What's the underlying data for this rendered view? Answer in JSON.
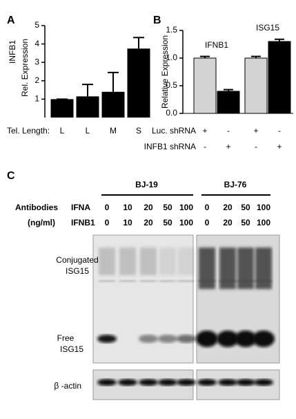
{
  "chart_data": [
    {
      "type": "bar",
      "panel_label": "A",
      "ylabel": [
        "INFB1",
        "Rel. Expression"
      ],
      "row_label": "Tel. Length:",
      "categories": [
        "L",
        "L",
        "M",
        "S"
      ],
      "values": [
        1,
        1.15,
        1.4,
        3.75
      ],
      "errors": [
        0,
        0.65,
        1.05,
        0.6
      ],
      "color": "#000000",
      "ylim": [
        0,
        5
      ],
      "yticks": [
        1,
        2,
        3,
        4,
        5
      ]
    },
    {
      "type": "grouped_bar",
      "panel_label": "B",
      "ylabel": "Relative Expression",
      "categories": [
        "IFNB1",
        "ISG15"
      ],
      "series": [
        {
          "color": "#d3d3d3",
          "values": [
            1.0,
            1.0
          ],
          "errors": [
            0.03,
            0.03
          ]
        },
        {
          "color": "#000000",
          "values": [
            0.4,
            1.3
          ],
          "errors": [
            0.03,
            0.04
          ]
        }
      ],
      "ylim": [
        0,
        1.5
      ],
      "yticks": [
        {
          "value": 0,
          "label": "0.0"
        },
        0.5,
        {
          "value": 1,
          "label": "1.0"
        },
        1.5
      ],
      "conditions": [
        {
          "label": "Luc. shRNA",
          "signs": [
            "+",
            "-",
            "+",
            "-"
          ]
        },
        {
          "label": "INFB1 shRNA",
          "signs": [
            "-",
            "+",
            "-",
            "+"
          ]
        }
      ]
    }
  ],
  "panel_c": {
    "panel_label": "C",
    "antibodies": "Antibodies",
    "units": "(ng/ml)",
    "rows": [
      "IFNA",
      "IFNB1"
    ],
    "groups": [
      {
        "name": "BJ-19",
        "ifna": [
          0,
          10,
          20,
          50,
          100
        ],
        "ifnb1": [
          0,
          10,
          20,
          50,
          100
        ]
      },
      {
        "name": "BJ-76",
        "ifna": [
          0,
          20,
          50,
          100
        ],
        "ifnb1": [
          0,
          20,
          50,
          100
        ]
      }
    ],
    "conjugated": [
      "Conjugated",
      "ISG15"
    ],
    "free": [
      "Free",
      "ISG15"
    ],
    "actin": "β -actin"
  }
}
